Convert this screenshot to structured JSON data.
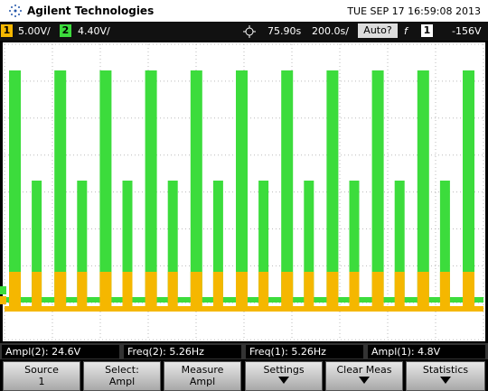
{
  "header": {
    "brand": "Agilent Technologies",
    "datetime": "TUE SEP 17 16:59:08 2013"
  },
  "status_bar": {
    "ch1_label": "1",
    "ch1_scale": "5.00V/",
    "ch2_label": "2",
    "ch2_scale": "4.40V/",
    "delay": "75.90s",
    "timebase": "200.0s/",
    "trigger_mode": "Auto?",
    "trigger_slope": "f",
    "trigger_source": "1",
    "trigger_level": "-156V"
  },
  "measurements": [
    {
      "label": "Ampl(2):",
      "value": "24.6V"
    },
    {
      "label": "Freq(2):",
      "value": "5.26Hz"
    },
    {
      "label": "Freq(1):",
      "value": "5.26Hz"
    },
    {
      "label": "Ampl(1):",
      "value": "4.8V"
    }
  ],
  "softkeys": [
    {
      "label": "Source",
      "value": "1"
    },
    {
      "label": "Select:",
      "value": "Ampl"
    },
    {
      "label": "Measure",
      "value": "Ampl"
    },
    {
      "label": "Settings"
    },
    {
      "label": "Clear Meas"
    },
    {
      "label": "Statistics"
    }
  ]
}
